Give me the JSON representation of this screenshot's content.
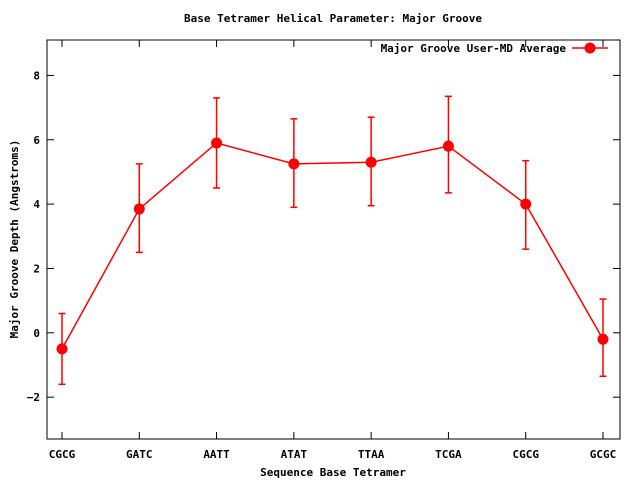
{
  "chart_data": {
    "type": "line",
    "title": "Base Tetramer Helical Parameter: Major Groove",
    "xlabel": "Sequence Base Tetramer",
    "ylabel": "Major Groove Depth (Angstroms)",
    "categories": [
      "CGCG",
      "GATC",
      "AATT",
      "ATAT",
      "TTAA",
      "TCGA",
      "CGCG",
      "GCGC"
    ],
    "ylim": [
      -3.3,
      9.1
    ],
    "yticks": [
      -2,
      0,
      2,
      4,
      6,
      8
    ],
    "grid": false,
    "legend_position": "top-right",
    "series": [
      {
        "name": "Major Groove User-MD Average",
        "color": "#ff0000",
        "values": [
          -0.5,
          3.85,
          5.9,
          5.25,
          5.3,
          5.8,
          4.0,
          -0.2
        ],
        "err_low": [
          -1.6,
          2.5,
          4.5,
          3.9,
          3.95,
          4.35,
          2.6,
          -1.35
        ],
        "err_high": [
          0.6,
          5.25,
          7.3,
          6.65,
          6.7,
          7.35,
          5.35,
          1.05
        ]
      }
    ]
  }
}
